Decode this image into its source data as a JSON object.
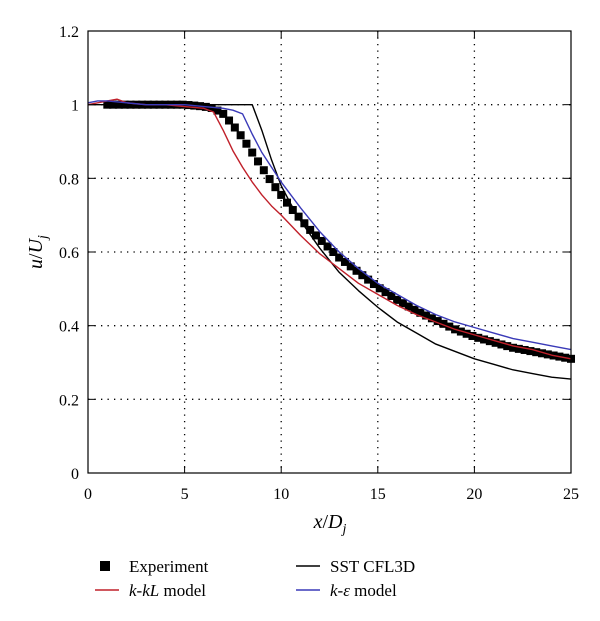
{
  "chart_data": {
    "type": "line",
    "title": "",
    "xlabel": {
      "var": "x",
      "sep": "/",
      "den": "D",
      "sub": "j"
    },
    "ylabel": {
      "var": "u",
      "sep": "/",
      "den": "U",
      "sub": "j"
    },
    "xlim": [
      0,
      25
    ],
    "ylim": [
      0,
      1.2
    ],
    "x_ticks": [
      0,
      5,
      10,
      15,
      20,
      25
    ],
    "x_tick_labels": [
      "0",
      "5",
      "10",
      "15",
      "20",
      "25"
    ],
    "y_ticks": [
      0,
      0.2,
      0.4,
      0.6,
      0.8,
      1.0,
      1.2
    ],
    "y_tick_labels": [
      "0",
      "0.2",
      "0.4",
      "0.6",
      "0.8",
      "1",
      "1.2"
    ],
    "grid": "dotted",
    "legend_position": "below",
    "series": [
      {
        "name": "Experiment",
        "legend": [
          {
            "t": "Experiment",
            "i": false
          }
        ],
        "style": "square-markers",
        "color": "#000000",
        "x": [
          1,
          2,
          3,
          4,
          5,
          6,
          6.5,
          7,
          7.5,
          8,
          8.5,
          9,
          9.5,
          10,
          10.5,
          11,
          11.5,
          12,
          13,
          14,
          15,
          16,
          17,
          18,
          19,
          20,
          21,
          22,
          23,
          24,
          25
        ],
        "y": [
          1.0,
          1.0,
          1.0,
          1.0,
          1.0,
          0.995,
          0.99,
          0.975,
          0.945,
          0.91,
          0.87,
          0.83,
          0.79,
          0.755,
          0.72,
          0.69,
          0.66,
          0.635,
          0.585,
          0.545,
          0.505,
          0.47,
          0.44,
          0.415,
          0.39,
          0.37,
          0.355,
          0.34,
          0.33,
          0.32,
          0.31
        ]
      },
      {
        "name": "SST CFL3D",
        "legend": [
          {
            "t": "SST CFL3D",
            "i": false
          }
        ],
        "style": "line",
        "color": "#000000",
        "x": [
          0,
          1,
          2,
          4,
          6,
          8,
          8.5,
          9,
          9.5,
          10,
          10.5,
          11,
          12,
          13,
          14,
          15,
          16,
          17,
          18,
          19,
          20,
          21,
          22,
          23,
          24,
          25
        ],
        "y": [
          1.0,
          1.0,
          1.0,
          1.0,
          1.0,
          1.0,
          1.0,
          0.93,
          0.85,
          0.78,
          0.73,
          0.685,
          0.61,
          0.545,
          0.495,
          0.45,
          0.41,
          0.38,
          0.35,
          0.33,
          0.31,
          0.295,
          0.28,
          0.27,
          0.26,
          0.255
        ]
      },
      {
        "name": "k-kL model",
        "legend": [
          {
            "t": "k",
            "i": true
          },
          {
            "t": "-",
            "i": false
          },
          {
            "t": "kL",
            "i": true
          },
          {
            "t": " model",
            "i": false
          }
        ],
        "style": "line",
        "color": "#c0202a",
        "x": [
          0,
          0.5,
          1,
          1.5,
          2,
          3,
          4,
          5,
          6,
          6.5,
          7,
          7.5,
          8,
          8.5,
          9,
          9.5,
          10,
          11,
          12,
          13,
          14,
          15,
          16,
          17,
          18,
          19,
          20,
          21,
          22,
          23,
          24,
          25
        ],
        "y": [
          1.0,
          1.005,
          1.01,
          1.015,
          1.005,
          1.0,
          1.0,
          0.995,
          0.99,
          0.98,
          0.93,
          0.875,
          0.83,
          0.79,
          0.755,
          0.725,
          0.7,
          0.645,
          0.595,
          0.555,
          0.515,
          0.485,
          0.455,
          0.43,
          0.41,
          0.39,
          0.375,
          0.36,
          0.345,
          0.335,
          0.32,
          0.31
        ]
      },
      {
        "name": "k-ε model",
        "legend": [
          {
            "t": "k",
            "i": true
          },
          {
            "t": "-",
            "i": false
          },
          {
            "t": "ε",
            "i": true
          },
          {
            "t": " model",
            "i": false
          }
        ],
        "style": "line",
        "color": "#3a3ab8",
        "x": [
          0,
          0.5,
          1,
          2,
          3,
          4,
          5,
          6,
          7,
          7.5,
          8,
          8.5,
          9,
          9.5,
          10,
          11,
          12,
          13,
          14,
          15,
          16,
          17,
          18,
          19,
          20,
          21,
          22,
          23,
          24,
          25
        ],
        "y": [
          1.005,
          1.01,
          1.01,
          1.005,
          1.0,
          1.0,
          1.0,
          0.995,
          0.99,
          0.985,
          0.975,
          0.92,
          0.87,
          0.83,
          0.79,
          0.72,
          0.655,
          0.6,
          0.555,
          0.515,
          0.485,
          0.455,
          0.43,
          0.41,
          0.395,
          0.38,
          0.365,
          0.355,
          0.345,
          0.335
        ]
      }
    ]
  }
}
